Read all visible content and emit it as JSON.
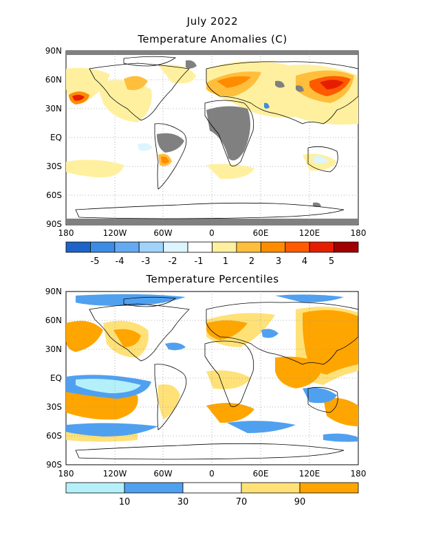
{
  "header": {
    "title": "July 2022",
    "subtitle": "Temperature Anomalies (C)"
  },
  "panel2": {
    "title": "Temperature Percentiles"
  },
  "axes": {
    "lat_labels": [
      "90N",
      "60N",
      "30N",
      "EQ",
      "30S",
      "60S",
      "90S"
    ],
    "lon_labels": [
      "180",
      "120W",
      "60W",
      "0",
      "60E",
      "120E",
      "180"
    ]
  },
  "anomaly_scale": {
    "colors": [
      "#1e64c8",
      "#3c8ce6",
      "#64aaf0",
      "#a0d2fa",
      "#dcf5ff",
      "#ffffff",
      "#fff0a0",
      "#ffbe3c",
      "#ff8c00",
      "#ff5a00",
      "#e61e00",
      "#a00000"
    ],
    "labels": [
      "-5",
      "-4",
      "-3",
      "-2",
      "-1",
      "1",
      "2",
      "3",
      "4",
      "5"
    ]
  },
  "percentile_scale": {
    "colors": [
      "#b4f0fa",
      "#50a0f0",
      "#ffffff",
      "#ffe178",
      "#ffa500"
    ],
    "labels": [
      "10",
      "30",
      "70",
      "90"
    ]
  }
}
